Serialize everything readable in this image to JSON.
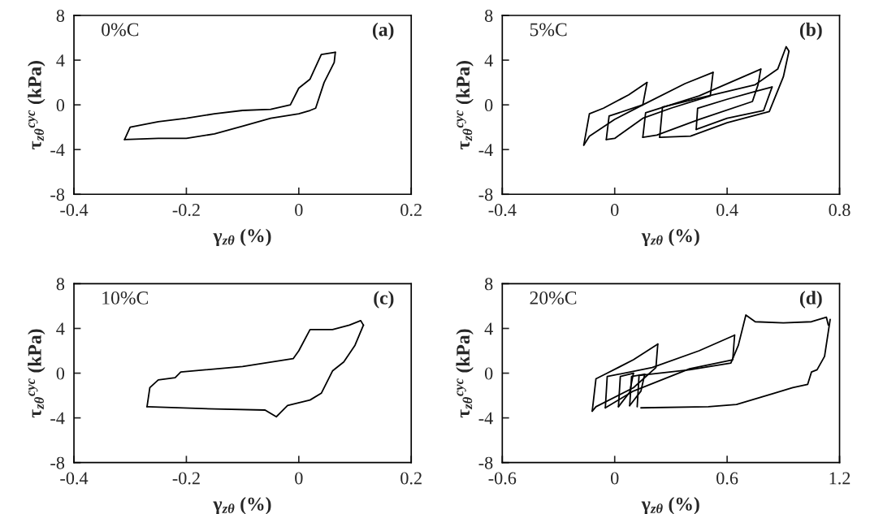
{
  "chart_data": [
    {
      "type": "line",
      "annotations": [
        "0%C",
        "(a)"
      ],
      "xlabel": "γ$_{zθ}$ (%)",
      "ylabel": "τ$_{zθ}$$^{cyc}$ (kPa)",
      "xlim": [
        -0.4,
        0.2
      ],
      "xticks": [
        -0.4,
        -0.2,
        0,
        0.2
      ],
      "ylim": [
        -8,
        8
      ],
      "yticks": [
        -8,
        -4,
        0,
        4,
        8
      ],
      "grid": false,
      "series": [
        {
          "color": "#000000",
          "x": [
            -0.31,
            -0.3,
            -0.25,
            -0.2,
            -0.15,
            -0.1,
            -0.05,
            -0.015,
            0,
            0.02,
            0.04,
            0.065
          ],
          "values": [
            -3.1,
            -2.0,
            -1.5,
            -1.2,
            -0.8,
            -0.5,
            -0.4,
            0,
            1.5,
            2.3,
            4.5,
            4.7
          ]
        },
        {
          "color": "#000000",
          "x": [
            -0.31,
            -0.25,
            -0.2,
            -0.15,
            -0.1,
            -0.05,
            0,
            0.02,
            0.03,
            0.045,
            0.063,
            0.065
          ],
          "values": [
            -3.1,
            -3.0,
            -3.0,
            -2.6,
            -1.9,
            -1.2,
            -0.8,
            -0.5,
            -0.3,
            2.0,
            3.8,
            4.7
          ]
        }
      ]
    },
    {
      "type": "line",
      "annotations": [
        "5%C",
        "(b)"
      ],
      "xlabel": "γ$_{zθ}$ (%)",
      "ylabel": "τ$_{zθ}$$^{cyc}$ (kPa)",
      "xlim": [
        -0.4,
        0.8
      ],
      "xticks": [
        -0.4,
        0,
        0.4,
        0.8
      ],
      "ylim": [
        -8,
        8
      ],
      "yticks": [
        -8,
        -4,
        0,
        4,
        8
      ],
      "grid": false,
      "series": [
        {
          "color": "#000000",
          "x": [
            -0.11,
            -0.09,
            -0.04,
            0.05,
            0.115
          ],
          "values": [
            -3.6,
            -0.8,
            -0.3,
            0.9,
            2.0
          ]
        },
        {
          "color": "#000000",
          "x": [
            -0.11,
            -0.09,
            0.0,
            0.1,
            0.115
          ],
          "values": [
            -3.6,
            -2.8,
            -1.3,
            0.0,
            2.0
          ]
        },
        {
          "color": "#000000",
          "x": [
            -0.03,
            -0.02,
            0.1,
            0.25,
            0.35
          ],
          "values": [
            -3.1,
            -1.0,
            0.0,
            1.9,
            2.9
          ]
        },
        {
          "color": "#000000",
          "x": [
            -0.03,
            0.0,
            0.1,
            0.2,
            0.34,
            0.35
          ],
          "values": [
            -3.1,
            -3.0,
            -1.2,
            -0.3,
            0.8,
            2.9
          ]
        },
        {
          "color": "#000000",
          "x": [
            0.1,
            0.11,
            0.3,
            0.52
          ],
          "values": [
            -2.9,
            -0.7,
            0.8,
            3.2
          ]
        },
        {
          "color": "#000000",
          "x": [
            0.1,
            0.15,
            0.3,
            0.49,
            0.51,
            0.52
          ],
          "values": [
            -2.9,
            -2.7,
            -1.3,
            0.3,
            1.8,
            3.2
          ]
        },
        {
          "color": "#000000",
          "x": [
            0.16,
            0.17,
            0.3,
            0.5,
            0.58,
            0.61,
            0.62
          ],
          "values": [
            -2.9,
            -0.2,
            0.6,
            1.8,
            3.2,
            5.2,
            4.8
          ]
        },
        {
          "color": "#000000",
          "x": [
            0.16,
            0.27,
            0.4,
            0.55,
            0.6,
            0.62
          ],
          "values": [
            -2.9,
            -2.8,
            -1.6,
            -0.6,
            2.5,
            4.8
          ]
        },
        {
          "color": "#000000",
          "x": [
            0.29,
            0.295,
            0.4,
            0.5,
            0.56
          ],
          "values": [
            -2.2,
            -0.3,
            0.5,
            1.2,
            1.6
          ]
        },
        {
          "color": "#000000",
          "x": [
            0.29,
            0.4,
            0.53,
            0.56
          ],
          "values": [
            -2.2,
            -1.2,
            -0.5,
            1.6
          ]
        }
      ]
    },
    {
      "type": "line",
      "annotations": [
        "10%C",
        "(c)"
      ],
      "xlabel": "γ$_{zθ}$ (%)",
      "ylabel": "τ$_{zθ}$$^{cyc}$ (kPa)",
      "xlim": [
        -0.4,
        0.2
      ],
      "xticks": [
        -0.4,
        -0.2,
        0,
        0.2
      ],
      "ylim": [
        -8,
        8
      ],
      "yticks": [
        -8,
        -4,
        0,
        4,
        8
      ],
      "grid": false,
      "series": [
        {
          "color": "#000000",
          "x": [
            -0.27,
            -0.265,
            -0.25,
            -0.22,
            -0.21,
            -0.1,
            -0.01,
            0.0,
            0.02,
            0.06,
            0.09,
            0.11,
            0.115
          ],
          "values": [
            -3.0,
            -1.3,
            -0.6,
            -0.4,
            0.1,
            0.6,
            1.3,
            2.0,
            3.9,
            3.9,
            4.3,
            4.7,
            4.3
          ]
        },
        {
          "color": "#000000",
          "x": [
            -0.27,
            -0.15,
            -0.06,
            -0.04,
            -0.02,
            0.02,
            0.04,
            0.06,
            0.08,
            0.1,
            0.115
          ],
          "values": [
            -3.0,
            -3.2,
            -3.3,
            -3.9,
            -2.9,
            -2.4,
            -1.8,
            0.2,
            1.0,
            2.5,
            4.3
          ]
        }
      ]
    },
    {
      "type": "line",
      "annotations": [
        "20%C",
        "(d)"
      ],
      "xlabel": "γ$_{zθ}$ (%)",
      "ylabel": "τ$_{zθ}$$^{cyc}$ (kPa)",
      "xlim": [
        -0.6,
        1.2
      ],
      "xticks": [
        -0.6,
        0,
        0.6,
        1.2
      ],
      "ylim": [
        -8,
        8
      ],
      "yticks": [
        -8,
        -4,
        0,
        4,
        8
      ],
      "grid": false,
      "series": [
        {
          "color": "#000000",
          "x": [
            -0.12,
            -0.1,
            -0.04,
            0.1,
            0.23
          ],
          "values": [
            -3.4,
            -0.5,
            0.0,
            1.2,
            2.6
          ]
        },
        {
          "color": "#000000",
          "x": [
            -0.12,
            -0.1,
            0.1,
            0.22,
            0.23
          ],
          "values": [
            -3.4,
            -3.0,
            -1.3,
            0.5,
            2.6
          ]
        },
        {
          "color": "#000000",
          "x": [
            -0.05,
            -0.04,
            0.2,
            0.45,
            0.64
          ],
          "values": [
            -3.1,
            -0.3,
            0.5,
            2.0,
            3.4
          ]
        },
        {
          "color": "#000000",
          "x": [
            -0.05,
            0.1,
            0.4,
            0.63,
            0.64
          ],
          "values": [
            -3.1,
            -1.6,
            0.4,
            1.2,
            3.4
          ]
        },
        {
          "color": "#000000",
          "x": [
            0.02,
            0.03,
            0.1
          ],
          "values": [
            -3.0,
            -0.3,
            0.0
          ]
        },
        {
          "color": "#000000",
          "x": [
            0.02,
            0.08,
            0.1
          ],
          "values": [
            -3.0,
            -1.7,
            0.0
          ]
        },
        {
          "color": "#000000",
          "x": [
            0.08,
            0.09,
            0.16
          ],
          "values": [
            -2.9,
            -0.3,
            -0.1
          ]
        },
        {
          "color": "#000000",
          "x": [
            0.08,
            0.14,
            0.16
          ],
          "values": [
            -2.9,
            -1.6,
            -0.1
          ]
        },
        {
          "color": "#000000",
          "x": [
            0.12,
            0.13,
            0.4,
            0.62,
            0.66,
            0.7,
            0.75,
            0.9,
            1.05,
            1.13,
            1.14
          ],
          "values": [
            -3.0,
            -0.2,
            0.3,
            0.9,
            2.5,
            5.2,
            4.6,
            4.5,
            4.6,
            5.0,
            4.3
          ]
        },
        {
          "color": "#000000",
          "x": [
            0.14,
            0.5,
            0.65,
            0.85,
            0.95,
            1.03,
            1.05,
            1.08,
            1.12,
            1.15
          ],
          "values": [
            -3.1,
            -3.0,
            -2.8,
            -1.8,
            -1.3,
            -1.0,
            0.1,
            0.3,
            1.5,
            4.8
          ]
        }
      ]
    }
  ]
}
